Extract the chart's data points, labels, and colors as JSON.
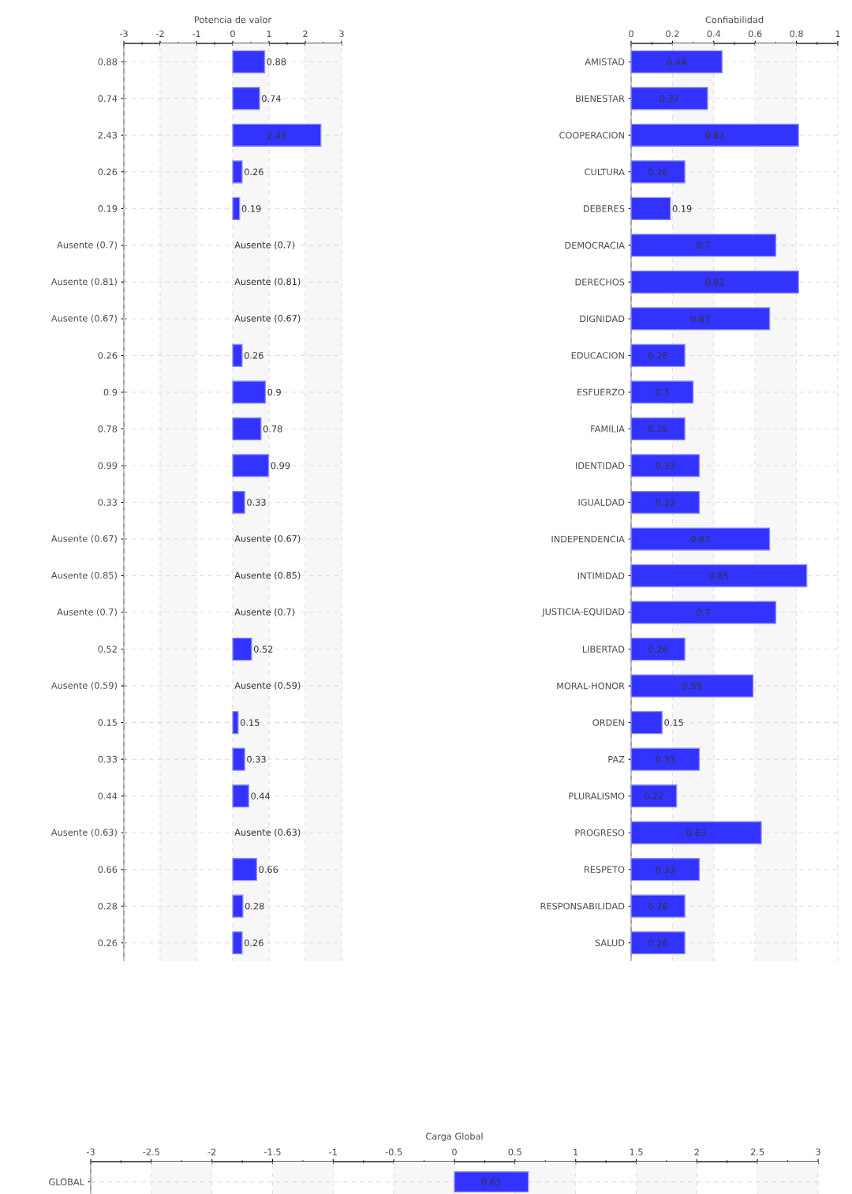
{
  "chart_data": [
    {
      "type": "bar",
      "orientation": "horizontal",
      "xlabel": "Potencia de valor",
      "categories": [
        "0.88",
        "0.74",
        "2.43",
        "0.26",
        "0.19",
        "Ausente (0.7)",
        "Ausente (0.81)",
        "Ausente (0.67)",
        "0.26",
        "0.9",
        "0.78",
        "0.99",
        "0.33",
        "Ausente (0.67)",
        "Ausente (0.85)",
        "Ausente (0.7)",
        "0.52",
        "Ausente (0.59)",
        "0.15",
        "0.33",
        "0.44",
        "Ausente (0.63)",
        "0.66",
        "0.28",
        "0.26"
      ],
      "values": [
        0.88,
        0.74,
        2.43,
        0.26,
        0.19,
        null,
        null,
        null,
        0.26,
        0.9,
        0.78,
        0.99,
        0.33,
        null,
        null,
        null,
        0.52,
        null,
        0.15,
        0.33,
        0.44,
        null,
        0.66,
        0.28,
        0.26
      ],
      "value_labels": [
        "0.88",
        "0.74",
        "2.43",
        "0.26",
        "0.19",
        "Ausente (0.7)",
        "Ausente (0.81)",
        "Ausente (0.67)",
        "0.26",
        "0.9",
        "0.78",
        "0.99",
        "0.33",
        "Ausente (0.67)",
        "Ausente (0.85)",
        "Ausente (0.7)",
        "0.52",
        "Ausente (0.59)",
        "0.15",
        "0.33",
        "0.44",
        "Ausente (0.63)",
        "0.66",
        "0.28",
        "0.26"
      ],
      "color": "#3333ff",
      "xlim": [
        -3,
        3
      ],
      "xticks": [
        -3,
        -2,
        -1,
        0,
        1,
        2,
        3
      ],
      "grid": true
    },
    {
      "type": "bar",
      "orientation": "horizontal",
      "xlabel": "Confiabilidad",
      "categories": [
        "AMISTAD",
        "BIENESTAR",
        "COOPERACION",
        "CULTURA",
        "DEBERES",
        "DEMOCRACIA",
        "DERECHOS",
        "DIGNIDAD",
        "EDUCACION",
        "ESFUERZO",
        "FAMILIA",
        "IDENTIDAD",
        "IGUALDAD",
        "INDEPENDENCIA",
        "INTIMIDAD",
        "JUSTICIA-EQUIDAD",
        "LIBERTAD",
        "MORAL-HONOR",
        "ORDEN",
        "PAZ",
        "PLURALISMO",
        "PROGRESO",
        "RESPETO",
        "RESPONSABILIDAD",
        "SALUD"
      ],
      "values": [
        0.44,
        0.37,
        0.81,
        0.26,
        0.19,
        0.7,
        0.81,
        0.67,
        0.26,
        0.3,
        0.26,
        0.33,
        0.33,
        0.67,
        0.85,
        0.7,
        0.26,
        0.59,
        0.15,
        0.33,
        0.22,
        0.63,
        0.33,
        0.26,
        0.26
      ],
      "data_labels": true,
      "color": "#3333ff",
      "xlim": [
        0,
        1
      ],
      "xticks": [
        0,
        0.2,
        0.4,
        0.6,
        0.8,
        1
      ],
      "grid": true
    },
    {
      "type": "bar",
      "orientation": "horizontal",
      "xlabel": "Carga Global",
      "categories": [
        "GLOBAL"
      ],
      "values": [
        0.61
      ],
      "data_labels": true,
      "color": "#3333ff",
      "xlim": [
        -3,
        3
      ],
      "xticks": [
        -3,
        -2.5,
        -2,
        -1.5,
        -1,
        -0.5,
        0,
        0.5,
        1,
        1.5,
        2,
        2.5,
        3
      ],
      "grid": true
    }
  ]
}
